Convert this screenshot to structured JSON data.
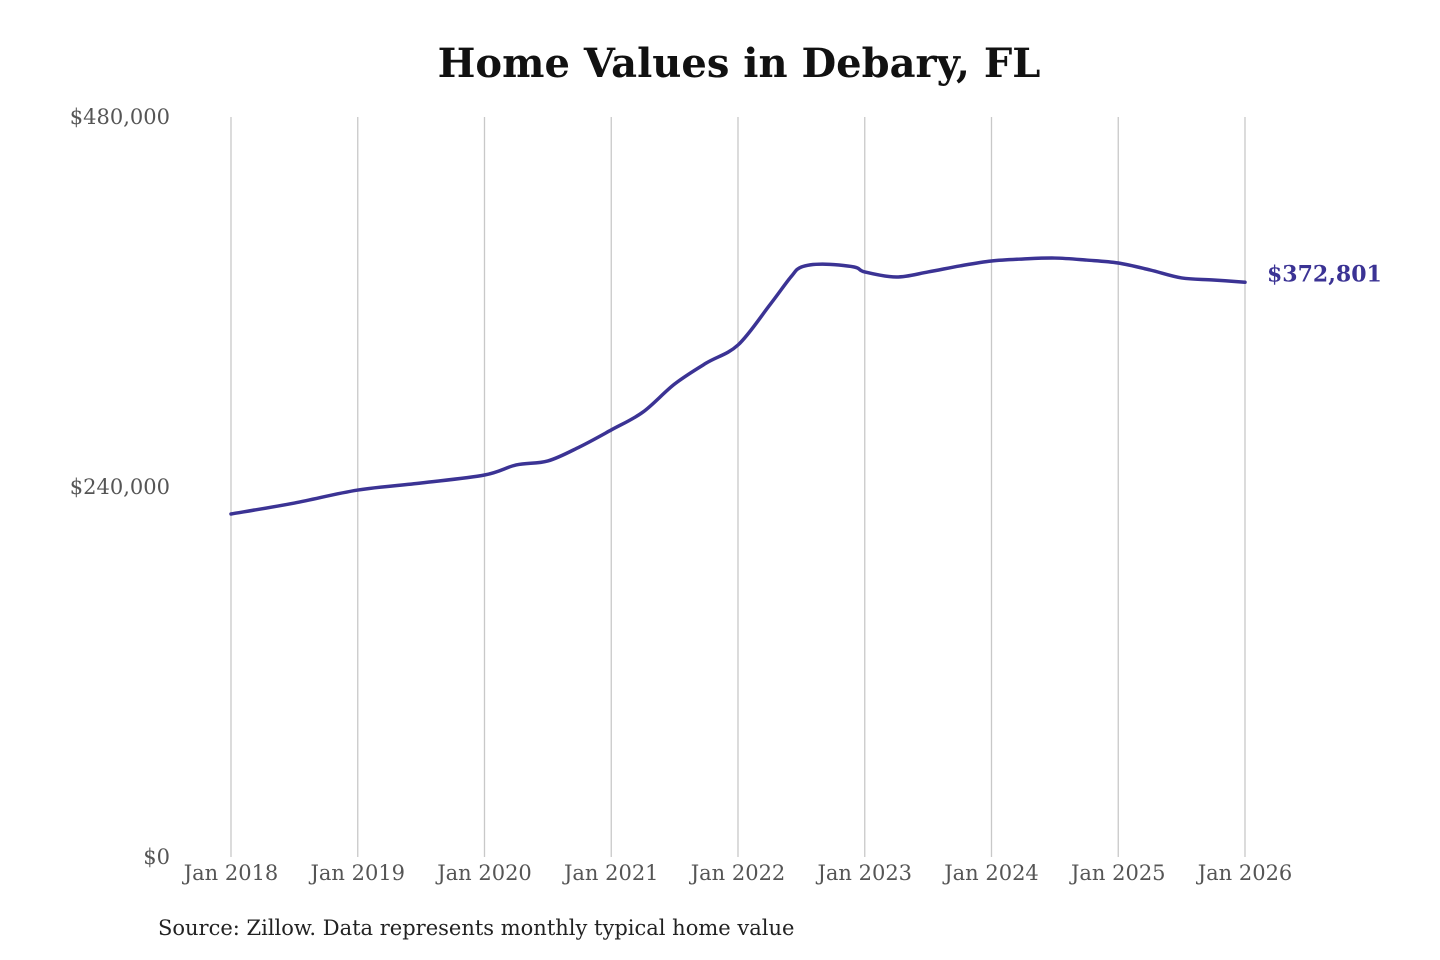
{
  "chart_data": {
    "type": "line",
    "title": "Home Values in Debary, FL",
    "source": "Source: Zillow. Data represents monthly typical home value",
    "ylim": [
      0,
      480000
    ],
    "y_ticks": [
      {
        "value": 0,
        "label": "$0"
      },
      {
        "value": 240000,
        "label": "$240,000"
      },
      {
        "value": 480000,
        "label": "$480,000"
      }
    ],
    "x_ticks": [
      {
        "value": "2018-01",
        "label": "Jan 2018"
      },
      {
        "value": "2019-01",
        "label": "Jan 2019"
      },
      {
        "value": "2020-01",
        "label": "Jan 2020"
      },
      {
        "value": "2021-01",
        "label": "Jan 2021"
      },
      {
        "value": "2022-01",
        "label": "Jan 2022"
      },
      {
        "value": "2023-01",
        "label": "Jan 2023"
      },
      {
        "value": "2024-01",
        "label": "Jan 2024"
      },
      {
        "value": "2025-01",
        "label": "Jan 2025"
      },
      {
        "value": "2026-01",
        "label": "Jan 2026"
      }
    ],
    "grid": "vertical",
    "line_color": "#3b3394",
    "end_label": "$372,801",
    "series": [
      {
        "x": [
          "2018-01",
          "2018-07",
          "2019-01",
          "2019-07",
          "2020-01",
          "2020-04",
          "2020-07",
          "2020-10",
          "2021-01",
          "2021-04",
          "2021-07",
          "2021-10",
          "2022-01",
          "2022-04",
          "2022-06",
          "2022-07",
          "2022-09",
          "2022-12",
          "2023-01",
          "2023-04",
          "2023-07",
          "2023-10",
          "2024-01",
          "2024-04",
          "2024-07",
          "2024-10",
          "2025-01",
          "2025-04",
          "2025-07",
          "2025-10",
          "2026-01"
        ],
        "y": [
          222500,
          229600,
          238000,
          242600,
          247800,
          254300,
          256900,
          266000,
          277000,
          288600,
          306800,
          320400,
          332100,
          358000,
          376200,
          382700,
          384600,
          382700,
          379500,
          376200,
          379500,
          383400,
          386600,
          387900,
          388500,
          387200,
          385300,
          380800,
          375600,
          374300,
          372801
        ]
      }
    ]
  }
}
